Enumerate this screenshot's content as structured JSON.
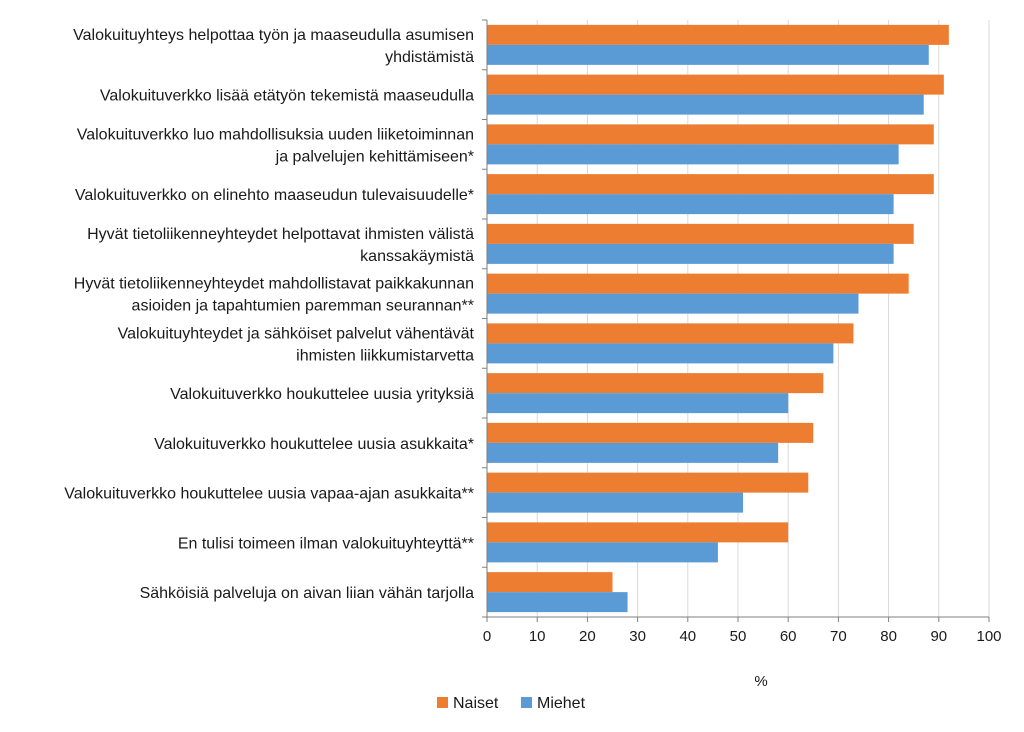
{
  "chart_data": {
    "type": "bar",
    "orientation": "horizontal",
    "categories": [
      [
        "Valokuituyhteys helpottaa työn ja maaseudulla asumisen",
        "yhdistämistä"
      ],
      [
        "Valokuituverkko lisää etätyön tekemistä maaseudulla"
      ],
      [
        "Valokuituverkko luo mahdollisuksia uuden liiketoiminnan",
        "ja palvelujen kehittämiseen*"
      ],
      [
        "Valokuituverkko on elinehto maaseudun tulevaisuudelle*"
      ],
      [
        "Hyvät tietoliikenneyhteydet helpottavat ihmisten välistä",
        "kanssakäymistä"
      ],
      [
        "Hyvät tietoliikenneyhteydet mahdollistavat paikkakunnan",
        "asioiden ja tapahtumien paremman seurannan**"
      ],
      [
        "Valokuituyhteydet ja sähköiset palvelut vähentävät",
        "ihmisten liikkumistarvetta"
      ],
      [
        "Valokuituverkko houkuttelee uusia yrityksiä"
      ],
      [
        "Valokuituverkko houkuttelee uusia asukkaita*"
      ],
      [
        "Valokuituverkko houkuttelee uusia vapaa-ajan asukkaita**"
      ],
      [
        "En tulisi toimeen ilman valokuituyhteyttä**"
      ],
      [
        "Sähköisiä palveluja on aivan liian vähän tarjolla"
      ]
    ],
    "series": [
      {
        "name": "Naiset",
        "color": "#ED7D31",
        "values": [
          92,
          91,
          89,
          89,
          85,
          84,
          73,
          67,
          65,
          64,
          60,
          25
        ]
      },
      {
        "name": "Miehet",
        "color": "#5B9BD5",
        "values": [
          88,
          87,
          82,
          81,
          81,
          74,
          69,
          60,
          58,
          51,
          46,
          28
        ]
      }
    ],
    "xlabel": "%",
    "xlim": [
      0,
      100
    ],
    "xticks": [
      "0",
      "10",
      "20",
      "30",
      "40",
      "50",
      "60",
      "70",
      "80",
      "90",
      "100"
    ],
    "grid": "vertical",
    "legend_position": "bottom"
  }
}
